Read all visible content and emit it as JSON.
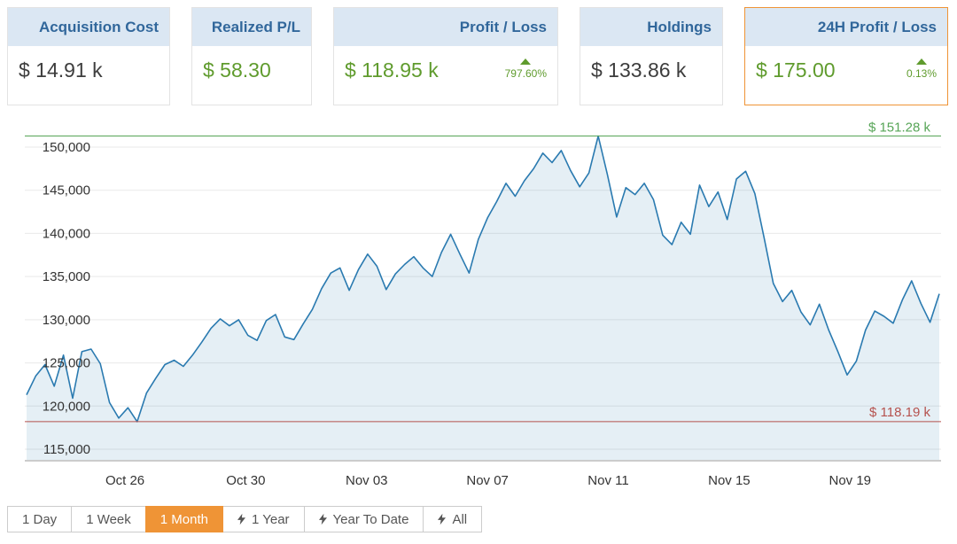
{
  "colors": {
    "accent": "#ef9436",
    "green": "#5f9b2d",
    "header_blue": "#31679b",
    "line_blue": "#2a7ab0",
    "fill_blue": "rgba(42,122,176,0.12)",
    "max_line_green": "#57a557",
    "min_line_red": "#b5524e",
    "value_dark": "#3d3d3d"
  },
  "cards": [
    {
      "title": "Acquisition Cost",
      "value": "$ 14.91 k",
      "green_value": false,
      "selected": false
    },
    {
      "title": "Realized P/L",
      "value": "$ 58.30",
      "green_value": true,
      "selected": false
    },
    {
      "title": "Profit / Loss",
      "value": "$ 118.95 k",
      "green_value": true,
      "change": "797.60%",
      "selected": false
    },
    {
      "title": "Holdings",
      "value": "$ 133.86 k",
      "green_value": false,
      "selected": false
    },
    {
      "title": "24H Profit / Loss",
      "value": "$ 175.00",
      "green_value": true,
      "change": "0.13%",
      "selected": true
    }
  ],
  "chart_data": {
    "type": "area",
    "title": "",
    "xlabel": "",
    "ylabel": "",
    "ylim": [
      115000,
      150000
    ],
    "y_tick_step": 5000,
    "y_tick_labels": [
      "115,000",
      "120,000",
      "125,000",
      "130,000",
      "135,000",
      "140,000",
      "145,000",
      "150,000"
    ],
    "x_tick_labels": [
      "Oct 26",
      "Oct 30",
      "Nov 03",
      "Nov 07",
      "Nov 11",
      "Nov 15",
      "Nov 19"
    ],
    "grid": "horizontal",
    "legend": "none",
    "max_line": {
      "value": 151280,
      "label": "$ 151.28 k"
    },
    "min_line": {
      "value": 118190,
      "label": "$ 118.19 k"
    },
    "values": [
      121300,
      123500,
      124800,
      122300,
      125900,
      120900,
      126300,
      126600,
      124900,
      120400,
      118600,
      119800,
      118190,
      121500,
      123200,
      124800,
      125300,
      124600,
      125900,
      127400,
      129000,
      130100,
      129300,
      130000,
      128200,
      127600,
      129900,
      130600,
      128000,
      127700,
      129500,
      131200,
      133600,
      135400,
      136000,
      133400,
      135800,
      137600,
      136200,
      133500,
      135300,
      136400,
      137300,
      136000,
      135000,
      137800,
      139900,
      137600,
      135400,
      139300,
      141800,
      143700,
      145800,
      144300,
      146100,
      147500,
      149300,
      148200,
      149600,
      147300,
      145400,
      147000,
      151280,
      146800,
      141900,
      145300,
      144500,
      145800,
      143900,
      139800,
      138700,
      141300,
      139900,
      145600,
      143100,
      144800,
      141600,
      146300,
      147200,
      144600,
      139500,
      134200,
      132100,
      133400,
      130900,
      129400,
      131800,
      128800,
      126300,
      123600,
      125200,
      128800,
      131000,
      130400,
      129600,
      132300,
      134500,
      131900,
      129700,
      133000
    ]
  },
  "timeframes": [
    {
      "label": "1 Day",
      "bolt": false,
      "active": false
    },
    {
      "label": "1 Week",
      "bolt": false,
      "active": false
    },
    {
      "label": "1 Month",
      "bolt": false,
      "active": true
    },
    {
      "label": "1 Year",
      "bolt": true,
      "active": false
    },
    {
      "label": "Year To Date",
      "bolt": true,
      "active": false
    },
    {
      "label": "All",
      "bolt": true,
      "active": false
    }
  ]
}
